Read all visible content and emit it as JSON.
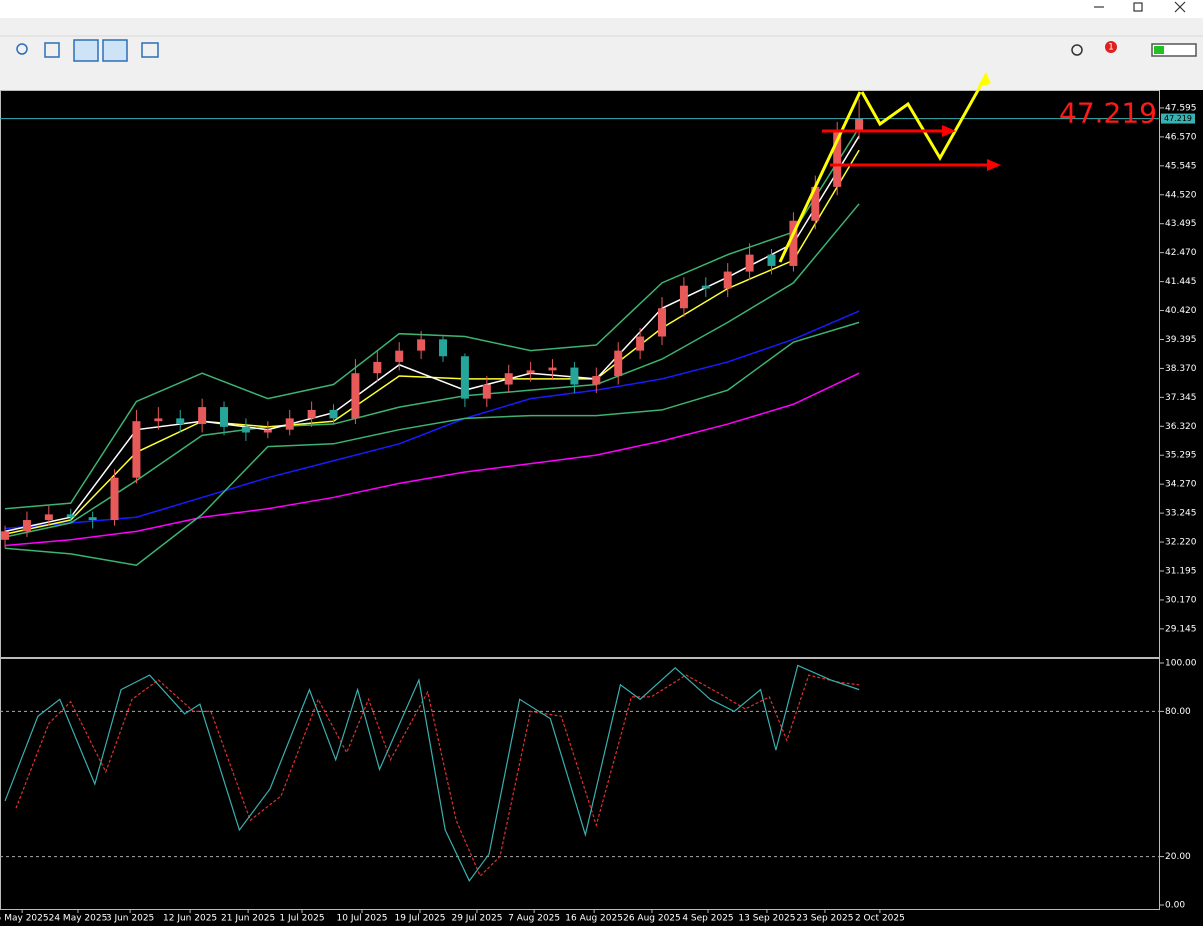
{
  "toolbar": {
    "notifications": 1
  },
  "chart_data": [
    {
      "type": "candlestick",
      "last_price": 47.219,
      "xlim": [
        -0.23,
        52.74
      ],
      "ylim": [
        28.22,
        48.16
      ],
      "yticks": [
        47.595,
        {
          "value": 46.57,
          "label": "46.570"
        },
        45.545,
        {
          "value": 44.52,
          "label": "44.520"
        },
        43.495,
        {
          "value": 42.47,
          "label": "42.470"
        },
        41.445,
        {
          "value": 40.42,
          "label": "40.420"
        },
        39.395,
        {
          "value": 38.37,
          "label": "38.370"
        },
        37.345,
        {
          "value": 36.32,
          "label": "36.320"
        },
        35.295,
        {
          "value": 34.27,
          "label": "34.270"
        },
        33.245,
        {
          "value": 32.22,
          "label": "32.220"
        },
        31.195,
        {
          "value": 30.17,
          "label": "30.170"
        },
        29.145
      ],
      "xticks": [
        {
          "value": 0.78,
          "label": "5 May 2025"
        },
        {
          "value": 3.33,
          "label": "24 May 2025"
        },
        {
          "value": 5.71,
          "label": "3 Jun 2025"
        },
        {
          "value": 8.45,
          "label": "12 Jun 2025"
        },
        {
          "value": 11.1,
          "label": "21 Jun 2025"
        },
        {
          "value": 13.56,
          "label": "1 Jul 2025"
        },
        {
          "value": 16.3,
          "label": "10 Jul 2025"
        },
        {
          "value": 18.95,
          "label": "19 Jul 2025"
        },
        {
          "value": 21.55,
          "label": "29 Jul 2025"
        },
        {
          "value": 24.16,
          "label": "7 Aug 2025"
        },
        {
          "value": 26.9,
          "label": "16 Aug 2025"
        },
        {
          "value": 29.54,
          "label": "26 Aug 2025"
        },
        {
          "value": 32.1,
          "label": "4 Sep 2025"
        },
        {
          "value": 34.79,
          "label": "13 Sep 2025"
        },
        {
          "value": 37.44,
          "label": "23 Sep 2025"
        },
        {
          "value": 39.95,
          "label": "2 Oct 2025"
        }
      ],
      "up_color": "#e85a5a",
      "down_color": "#26a69a",
      "x": [
        0,
        1,
        2,
        3,
        4,
        5,
        6,
        7,
        8,
        9,
        10,
        11,
        12,
        13,
        14,
        15,
        16,
        17,
        18,
        19,
        20,
        21,
        22,
        23,
        24,
        25,
        26,
        27,
        28,
        29,
        30,
        31,
        32,
        33,
        34,
        35,
        36,
        37,
        38,
        39
      ],
      "open": [
        32.3,
        32.6,
        33.0,
        33.2,
        33.1,
        33.0,
        34.5,
        36.5,
        36.6,
        36.4,
        37.0,
        36.3,
        36.1,
        36.2,
        36.6,
        36.9,
        36.6,
        38.2,
        38.6,
        39.0,
        39.4,
        38.8,
        37.3,
        37.8,
        38.2,
        38.3,
        38.4,
        37.8,
        38.1,
        39.0,
        39.5,
        40.5,
        41.3,
        41.2,
        41.8,
        42.4,
        42.0,
        43.6,
        44.8,
        46.8
      ],
      "high": [
        32.8,
        33.3,
        33.5,
        33.4,
        33.3,
        34.8,
        36.9,
        37.0,
        36.9,
        37.3,
        37.2,
        36.6,
        36.5,
        36.9,
        37.2,
        37.1,
        38.7,
        39.0,
        39.3,
        39.7,
        39.5,
        38.9,
        38.1,
        38.5,
        38.6,
        38.7,
        38.6,
        38.4,
        39.3,
        39.8,
        40.9,
        41.6,
        41.6,
        42.1,
        42.8,
        42.6,
        43.9,
        45.2,
        47.1,
        47.9
      ],
      "low": [
        32.0,
        32.4,
        32.8,
        32.9,
        32.7,
        32.8,
        34.3,
        36.2,
        36.1,
        36.1,
        36.0,
        35.8,
        35.9,
        36.0,
        36.3,
        36.4,
        36.4,
        37.9,
        38.3,
        38.7,
        38.6,
        37.0,
        37.0,
        37.5,
        37.9,
        38.0,
        37.5,
        37.5,
        37.8,
        38.7,
        39.2,
        40.2,
        40.9,
        40.9,
        41.5,
        41.7,
        41.8,
        43.3,
        44.5,
        46.5
      ],
      "close": [
        32.6,
        33.0,
        33.2,
        33.1,
        33.0,
        34.5,
        36.5,
        36.6,
        36.4,
        37.0,
        36.3,
        36.1,
        36.2,
        36.6,
        36.9,
        36.6,
        38.2,
        38.6,
        39.0,
        39.4,
        38.8,
        37.3,
        37.8,
        38.2,
        38.3,
        38.4,
        37.8,
        38.1,
        39.0,
        39.5,
        40.5,
        41.3,
        41.2,
        41.8,
        42.4,
        42.0,
        43.6,
        44.8,
        46.8,
        47.22
      ],
      "series": [
        {
          "color": "#ff00ff",
          "x": [
            0,
            3,
            6,
            9,
            12,
            15,
            18,
            21,
            24,
            27,
            30,
            33,
            36,
            39
          ],
          "values": [
            32.1,
            32.3,
            32.6,
            33.1,
            33.4,
            33.8,
            34.3,
            34.7,
            35.0,
            35.3,
            35.8,
            36.4,
            37.1,
            38.2
          ]
        },
        {
          "color": "#1a1aff",
          "x": [
            0,
            3,
            6,
            9,
            12,
            15,
            18,
            21,
            24,
            27,
            30,
            33,
            36,
            39
          ],
          "values": [
            32.7,
            32.9,
            33.1,
            33.8,
            34.5,
            35.1,
            35.7,
            36.6,
            37.3,
            37.6,
            38.0,
            38.6,
            39.4,
            40.4
          ]
        },
        {
          "color": "#3cb371",
          "x": [
            0,
            3,
            6,
            9,
            12,
            15,
            18,
            21,
            24,
            27,
            30,
            33,
            36,
            39
          ],
          "values": [
            32.0,
            31.8,
            31.4,
            33.2,
            35.6,
            35.7,
            36.2,
            36.6,
            36.7,
            36.7,
            36.9,
            37.6,
            39.3,
            40.0
          ]
        },
        {
          "color": "#3cb371",
          "x": [
            0,
            3,
            6,
            9,
            12,
            15,
            18,
            21,
            24,
            27,
            30,
            33,
            36,
            39
          ],
          "values": [
            32.4,
            32.9,
            34.4,
            36.0,
            36.3,
            36.4,
            37.0,
            37.4,
            37.6,
            37.8,
            38.7,
            40.0,
            41.4,
            44.2
          ]
        },
        {
          "color": "#3cb371",
          "x": [
            0,
            3,
            6,
            9,
            12,
            15,
            18,
            21,
            24,
            27,
            30,
            33,
            36,
            39
          ],
          "values": [
            33.4,
            33.6,
            37.2,
            38.2,
            37.3,
            37.8,
            39.6,
            39.5,
            39.0,
            39.2,
            41.4,
            42.4,
            43.2,
            46.9
          ]
        },
        {
          "color": "#ffff33",
          "x": [
            0,
            3,
            6,
            9,
            12,
            15,
            18,
            21,
            24,
            27,
            30,
            33,
            36,
            39
          ],
          "values": [
            32.5,
            33.0,
            35.4,
            36.5,
            36.3,
            36.5,
            38.1,
            38.0,
            38.0,
            38.0,
            39.8,
            41.2,
            42.2,
            46.1
          ]
        },
        {
          "color": "#ffffff",
          "x": [
            0,
            3,
            6,
            9,
            12,
            15,
            18,
            21,
            24,
            27,
            30,
            33,
            36,
            39
          ],
          "values": [
            32.6,
            33.1,
            36.2,
            36.5,
            36.2,
            36.8,
            38.5,
            37.6,
            38.2,
            38.0,
            40.5,
            41.6,
            42.8,
            46.6
          ]
        }
      ]
    },
    {
      "type": "line",
      "xlim": [
        -0.23,
        52.74
      ],
      "ylim": [
        0,
        100
      ],
      "yticks": [
        {
          "value": 100,
          "label": "100.00"
        },
        {
          "value": 80,
          "label": "80.00"
        },
        {
          "value": 20,
          "label": "20.00"
        },
        {
          "value": 0,
          "label": "0.00"
        }
      ],
      "series": [
        {
          "color": "#e03030",
          "dashed": true,
          "x": [
            0.5,
            2,
            3,
            4.6,
            5.8,
            7,
            8.6,
            9.4,
            11.2,
            12.6,
            14.3,
            15.6,
            16.6,
            17.6,
            19.3,
            20.6,
            21.7,
            22.6,
            24,
            25.4,
            27,
            28.6,
            29.5,
            31.1,
            32.7,
            33.8,
            34.9,
            35.7,
            36.7,
            38.1,
            39
          ],
          "values": [
            40,
            75,
            84,
            55,
            85,
            93,
            80,
            80,
            35,
            45,
            85,
            63,
            85,
            60,
            88,
            35,
            12,
            20,
            80,
            78,
            33,
            86,
            86,
            95,
            87,
            81,
            86,
            68,
            95,
            92,
            91
          ]
        },
        {
          "color": "#3ab0b0",
          "dashed": false,
          "x": [
            0,
            1.5,
            2.5,
            4.1,
            5.3,
            6.6,
            8.2,
            8.9,
            10.7,
            12.1,
            13.9,
            15.1,
            16.1,
            17.1,
            18.9,
            20.1,
            21.2,
            22.1,
            23.5,
            24.9,
            26.5,
            28.1,
            29,
            30.6,
            32.2,
            33.3,
            34.5,
            35.2,
            36.2,
            37.7,
            39
          ],
          "values": [
            43,
            78,
            85,
            50,
            89,
            95,
            79,
            83,
            31,
            48,
            89,
            60,
            89,
            56,
            93,
            31,
            10,
            21,
            85,
            77,
            29,
            91,
            85,
            98,
            85,
            80,
            89,
            64,
            99,
            93,
            89
          ]
        }
      ]
    }
  ]
}
